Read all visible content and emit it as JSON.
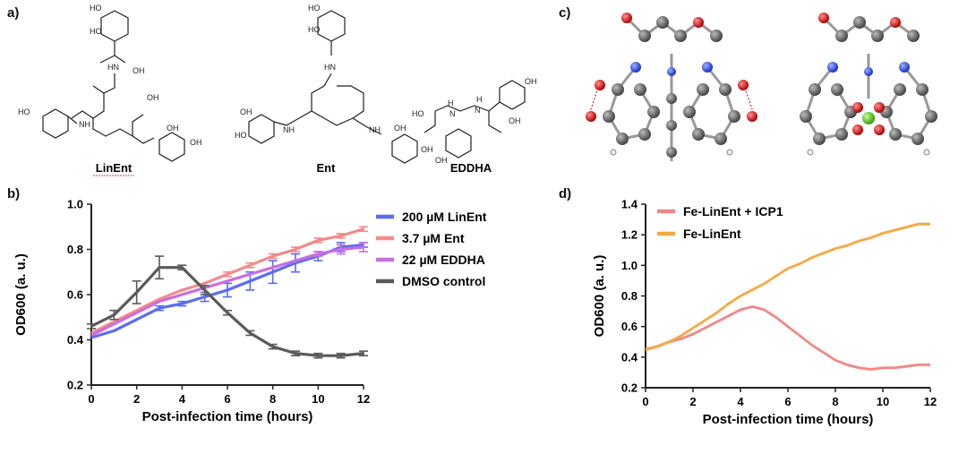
{
  "panels": {
    "a": "a)",
    "b": "b)",
    "c": "c)",
    "d": "d)"
  },
  "molecules": [
    "LinEnt",
    "Ent",
    "EDDHA"
  ],
  "chem_labels": {
    "HO": "HO",
    "OH": "OH",
    "O": "O",
    "NH": "NH",
    "HN": "HN",
    "H": "H",
    "N": "N"
  },
  "colors": {
    "linent": "#5b6cf2",
    "ent": "#f48a8a",
    "eddha": "#c96ee0",
    "dmso": "#5a5a5a",
    "fe_linent_icp1": "#f08585",
    "fe_linent": "#f5a742"
  },
  "chart_data": [
    {
      "type": "line",
      "x": [
        0,
        1,
        2,
        3,
        4,
        5,
        6,
        7,
        8,
        9,
        10,
        11,
        12
      ],
      "series": [
        {
          "name": "200 µM LinEnt",
          "values": [
            0.41,
            0.44,
            0.49,
            0.54,
            0.56,
            0.59,
            0.62,
            0.66,
            0.7,
            0.74,
            0.77,
            0.81,
            0.82
          ],
          "err": [
            0,
            0,
            0,
            0.01,
            0.01,
            0.02,
            0.03,
            0.04,
            0.05,
            0.04,
            0.02,
            0.02,
            0.01
          ]
        },
        {
          "name": "3.7 µM Ent",
          "values": [
            0.43,
            0.48,
            0.53,
            0.58,
            0.62,
            0.65,
            0.69,
            0.73,
            0.77,
            0.8,
            0.84,
            0.86,
            0.89
          ],
          "err": [
            0,
            0,
            0,
            0,
            0,
            0,
            0.01,
            0.01,
            0.01,
            0.01,
            0.01,
            0.01,
            0.01
          ]
        },
        {
          "name": "22 µM EDDHA",
          "values": [
            0.42,
            0.47,
            0.52,
            0.57,
            0.6,
            0.63,
            0.66,
            0.69,
            0.72,
            0.75,
            0.78,
            0.8,
            0.81
          ],
          "err": [
            0,
            0,
            0,
            0,
            0,
            0,
            0,
            0,
            0,
            0,
            0.01,
            0.02,
            0.02
          ]
        },
        {
          "name": "DMSO control",
          "values": [
            0.46,
            0.51,
            0.61,
            0.72,
            0.72,
            0.62,
            0.52,
            0.43,
            0.37,
            0.34,
            0.33,
            0.33,
            0.34
          ],
          "err": [
            0.01,
            0.02,
            0.05,
            0.05,
            0.01,
            0.02,
            0.01,
            0.01,
            0.01,
            0.01,
            0.01,
            0.01,
            0.01
          ]
        }
      ],
      "xlabel": "Post-infection time (hours)",
      "ylabel": "OD600 (a. u.)",
      "xlim": [
        0,
        12
      ],
      "ylim": [
        0.2,
        1.0
      ],
      "xticks": [
        "0",
        "2",
        "4",
        "6",
        "8",
        "10",
        "12"
      ],
      "yticks": [
        "0.2",
        "0.4",
        "0.6",
        "0.8",
        "1.0"
      ],
      "legend": "top-right"
    },
    {
      "type": "line",
      "x": [
        0,
        0.5,
        1,
        1.5,
        2,
        2.5,
        3,
        3.5,
        4,
        4.5,
        5,
        5.5,
        6,
        6.5,
        7,
        7.5,
        8,
        8.5,
        9,
        9.5,
        10,
        10.5,
        11,
        11.5,
        12
      ],
      "series": [
        {
          "name": "Fe-LinEnt + ICP1",
          "values": [
            0.45,
            0.47,
            0.5,
            0.52,
            0.55,
            0.59,
            0.63,
            0.67,
            0.71,
            0.73,
            0.71,
            0.66,
            0.6,
            0.54,
            0.48,
            0.43,
            0.38,
            0.35,
            0.33,
            0.32,
            0.33,
            0.33,
            0.34,
            0.35,
            0.35
          ]
        },
        {
          "name": "Fe-LinEnt",
          "values": [
            0.45,
            0.47,
            0.5,
            0.54,
            0.59,
            0.64,
            0.69,
            0.75,
            0.8,
            0.84,
            0.88,
            0.93,
            0.98,
            1.01,
            1.05,
            1.08,
            1.11,
            1.13,
            1.16,
            1.18,
            1.21,
            1.23,
            1.25,
            1.27,
            1.27
          ]
        }
      ],
      "xlabel": "Post-infection time (hours)",
      "ylabel": "OD600 (a. u.)",
      "xlim": [
        0,
        12
      ],
      "ylim": [
        0.2,
        1.4
      ],
      "xticks": [
        "0",
        "2",
        "4",
        "6",
        "8",
        "10",
        "12"
      ],
      "yticks": [
        "0.2",
        "0.4",
        "0.6",
        "0.8",
        "1.0",
        "1.2",
        "1.4"
      ],
      "legend": "top-left"
    }
  ]
}
